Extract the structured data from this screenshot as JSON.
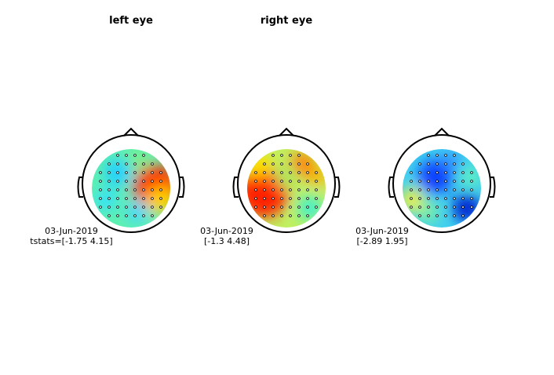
{
  "panels": [
    {
      "title": "left eye",
      "date": "03-Jun-2019",
      "stat": "tstats=[-1.75 4.15]"
    },
    {
      "title": "right eye",
      "date": "03-Jun-2019",
      "stat": "[-1.3 4.48]"
    },
    {
      "date": "03-Jun-2019",
      "stat": "[-2.89 1.95]"
    }
  ]
}
